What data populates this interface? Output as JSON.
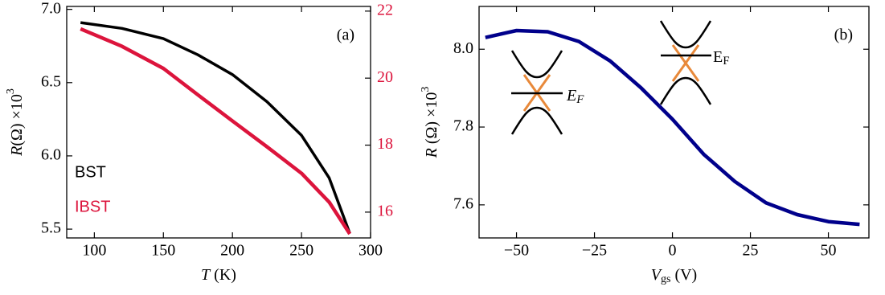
{
  "chart_data": [
    {
      "type": "line",
      "title": "(a)",
      "xlabel": [
        "T",
        " (K)"
      ],
      "ylabel": [
        "R",
        "(Ω) ×10",
        "3"
      ],
      "xlim": [
        80,
        300
      ],
      "xticks": [
        100,
        150,
        200,
        250,
        300
      ],
      "ylim": [
        5.44,
        7.02
      ],
      "yticks": [
        {
          "value": 5.5,
          "label": "5.5"
        },
        {
          "value": 6,
          "label": "6.0"
        },
        {
          "value": 6.5,
          "label": "6.5"
        },
        {
          "value": 7,
          "label": "7.0"
        }
      ],
      "y2lim": [
        15.23,
        22.14
      ],
      "y2ticks": [
        16,
        18,
        20,
        22
      ],
      "y2tick_color": "#dc143c",
      "series": [
        {
          "name": "BST",
          "color": "#000000",
          "axis": "y",
          "x": [
            90,
            120,
            150,
            175,
            200,
            225,
            250,
            270,
            285
          ],
          "values": [
            6.91,
            6.87,
            6.8,
            6.69,
            6.555,
            6.37,
            6.14,
            5.85,
            5.47
          ]
        },
        {
          "name": "IBST",
          "color": "#dc143c",
          "axis": "y2",
          "x": [
            90,
            120,
            150,
            175,
            200,
            225,
            250,
            270,
            285
          ],
          "values": [
            21.47,
            20.95,
            20.29,
            19.5,
            18.72,
            17.95,
            17.16,
            16.3,
            15.35
          ]
        }
      ]
    },
    {
      "type": "line",
      "title": "(b)",
      "xlabel": [
        "V",
        "gs",
        " (V)"
      ],
      "ylabel": [
        "R",
        " (Ω) ×10",
        "3"
      ],
      "xlim": [
        -62,
        63
      ],
      "xticks": [
        {
          "value": -50,
          "label": "−50"
        },
        {
          "value": -25,
          "label": "−25"
        },
        0,
        25,
        50
      ],
      "ylim": [
        7.515,
        8.11
      ],
      "yticks": [
        {
          "value": 7.6,
          "label": "7.6"
        },
        {
          "value": 7.8,
          "label": "7.8"
        },
        {
          "value": 8,
          "label": "8.0"
        }
      ],
      "annotations": [
        [
          "E",
          "F"
        ],
        [
          "E",
          "F"
        ]
      ],
      "series": [
        {
          "name": null,
          "color": "#00008b",
          "axis": "y",
          "x": [
            -60,
            -50,
            -40,
            -30,
            -20,
            -10,
            0,
            10,
            20,
            30,
            40,
            50,
            60
          ],
          "values": [
            8.03,
            8.048,
            8.045,
            8.02,
            7.97,
            7.9,
            7.82,
            7.73,
            7.66,
            7.605,
            7.575,
            7.557,
            7.55
          ]
        }
      ]
    }
  ]
}
